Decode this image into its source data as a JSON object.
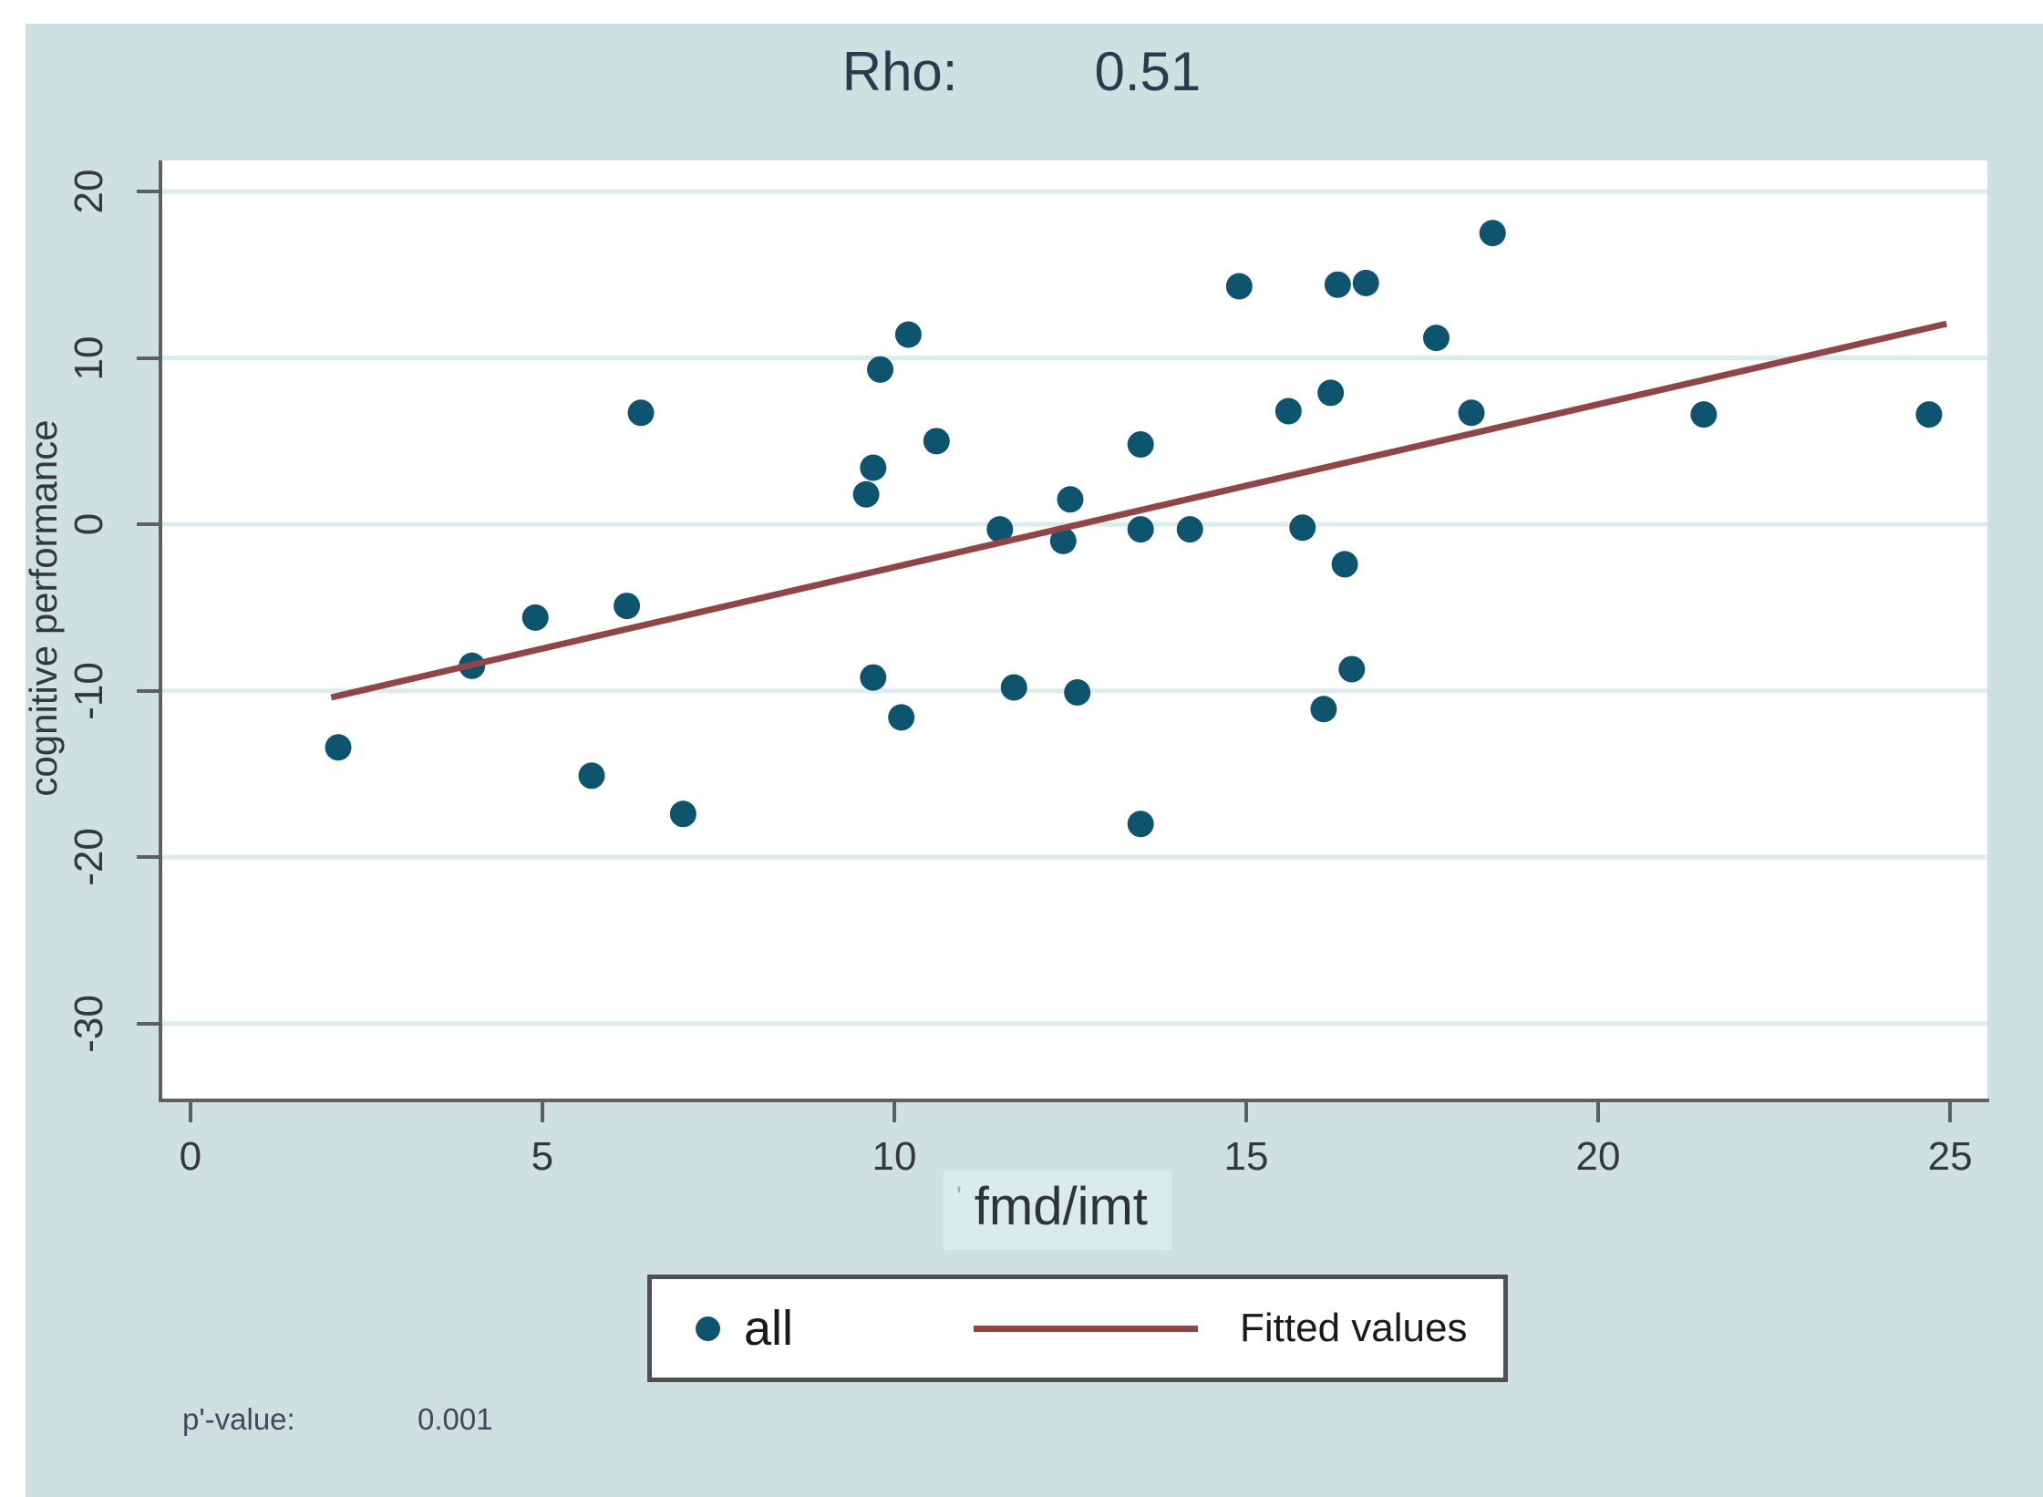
{
  "title": {
    "label": "Rho:",
    "value": "0.51"
  },
  "footer": {
    "p_label": "p'-value:",
    "p_value": "0.001"
  },
  "legend": {
    "marker_label": "all",
    "line_label": "Fitted values"
  },
  "chart_data": {
    "type": "scatter",
    "title": "Rho: 0.51",
    "xlabel": "fmd/imt",
    "xlabel_prefix": "'",
    "ylabel": "cognitive performance",
    "x_ticks": [
      0,
      5,
      10,
      15,
      20,
      25
    ],
    "y_ticks": [
      20,
      10,
      0,
      -10,
      -20,
      -30
    ],
    "xlim": [
      -0.4,
      25.53
    ],
    "ylim": [
      -34.5,
      21.86
    ],
    "grid": "horizontal-only",
    "legend_position": "bottom-center",
    "series": [
      {
        "name": "all",
        "type": "scatter",
        "points": [
          [
            2.1,
            -13.4
          ],
          [
            4.0,
            -8.5
          ],
          [
            4.9,
            -5.6
          ],
          [
            5.7,
            -15.1
          ],
          [
            6.2,
            -4.9
          ],
          [
            6.4,
            6.7
          ],
          [
            7.0,
            -17.4
          ],
          [
            9.6,
            1.8
          ],
          [
            9.7,
            3.4
          ],
          [
            9.7,
            -9.2
          ],
          [
            9.8,
            9.3
          ],
          [
            10.1,
            -11.6
          ],
          [
            10.2,
            11.4
          ],
          [
            10.6,
            5.0
          ],
          [
            11.5,
            -0.3
          ],
          [
            11.7,
            -9.8
          ],
          [
            12.4,
            -1.0
          ],
          [
            12.5,
            1.5
          ],
          [
            12.6,
            -10.1
          ],
          [
            13.5,
            4.8
          ],
          [
            13.5,
            -0.3
          ],
          [
            13.5,
            -18.0
          ],
          [
            14.2,
            -0.3
          ],
          [
            14.9,
            14.3
          ],
          [
            15.6,
            6.8
          ],
          [
            15.8,
            -0.2
          ],
          [
            16.1,
            -11.1
          ],
          [
            16.2,
            7.9
          ],
          [
            16.3,
            14.4
          ],
          [
            16.4,
            -2.4
          ],
          [
            16.5,
            -8.7
          ],
          [
            16.7,
            14.5
          ],
          [
            17.7,
            11.2
          ],
          [
            18.2,
            6.7
          ],
          [
            18.5,
            17.5
          ],
          [
            21.5,
            6.6
          ],
          [
            24.7,
            6.6
          ]
        ]
      },
      {
        "name": "Fitted values",
        "type": "line",
        "points": [
          [
            2.0,
            -10.4
          ],
          [
            24.95,
            12.05
          ]
        ]
      }
    ],
    "colors": {
      "marker": "#0f546e",
      "fit_line": "#904646",
      "gridline": "#dcebec",
      "axis": "#5c6064",
      "plot_background": "#ffffff",
      "outer_background": "#cfe0e1",
      "title_text": "#2c3a50",
      "tick_text": "#33383d"
    }
  }
}
